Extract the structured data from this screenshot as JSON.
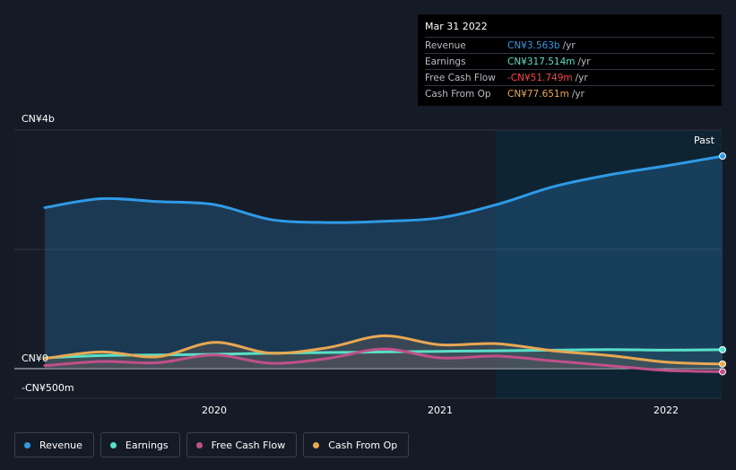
{
  "chart_data": {
    "type": "area",
    "x_axis": {
      "ticks": [
        "2020",
        "2021",
        "2022"
      ]
    },
    "y_axis": {
      "labels": [
        "CN¥4b",
        "CN¥0",
        "-CN¥500m"
      ],
      "ylim": [
        -500000000,
        4000000000
      ],
      "unit": "CN¥"
    },
    "region_label": "Past",
    "x": [
      2019.25,
      2019.5,
      2019.75,
      2020.0,
      2020.25,
      2020.5,
      2020.75,
      2021.0,
      2021.25,
      2021.5,
      2021.75,
      2022.0,
      2022.25
    ],
    "series": [
      {
        "name": "Revenue",
        "color": "#2f9ae6",
        "values": [
          2700000000,
          2850000000,
          2800000000,
          2750000000,
          2500000000,
          2450000000,
          2470000000,
          2530000000,
          2750000000,
          3050000000,
          3250000000,
          3400000000,
          3563000000
        ]
      },
      {
        "name": "Earnings",
        "color": "#58e0c8",
        "values": [
          180000000,
          220000000,
          230000000,
          240000000,
          260000000,
          270000000,
          280000000,
          290000000,
          300000000,
          310000000,
          320000000,
          310000000,
          317514000
        ]
      },
      {
        "name": "Free Cash Flow",
        "color": "#c0508a",
        "values": [
          50000000,
          120000000,
          100000000,
          230000000,
          90000000,
          170000000,
          330000000,
          180000000,
          210000000,
          130000000,
          50000000,
          -30000000,
          -51749000
        ]
      },
      {
        "name": "Cash From Op",
        "color": "#e8a852",
        "values": [
          170000000,
          280000000,
          200000000,
          440000000,
          260000000,
          350000000,
          550000000,
          400000000,
          420000000,
          300000000,
          220000000,
          110000000,
          77651000
        ]
      }
    ]
  },
  "tooltip": {
    "date": "Mar 31 2022",
    "rows": [
      {
        "name": "Revenue",
        "value": "CN¥3.563b",
        "unit": "/yr",
        "color": "#2f9ae6"
      },
      {
        "name": "Earnings",
        "value": "CN¥317.514m",
        "unit": "/yr",
        "color": "#58e0c8"
      },
      {
        "name": "Free Cash Flow",
        "value": "-CN¥51.749m",
        "unit": "/yr",
        "color": "#f2474f"
      },
      {
        "name": "Cash From Op",
        "value": "CN¥77.651m",
        "unit": "/yr",
        "color": "#e8a852"
      }
    ]
  },
  "legend": [
    {
      "label": "Revenue",
      "color": "#2f9ae6"
    },
    {
      "label": "Earnings",
      "color": "#58e0c8"
    },
    {
      "label": "Free Cash Flow",
      "color": "#c0508a"
    },
    {
      "label": "Cash From Op",
      "color": "#e8a852"
    }
  ]
}
